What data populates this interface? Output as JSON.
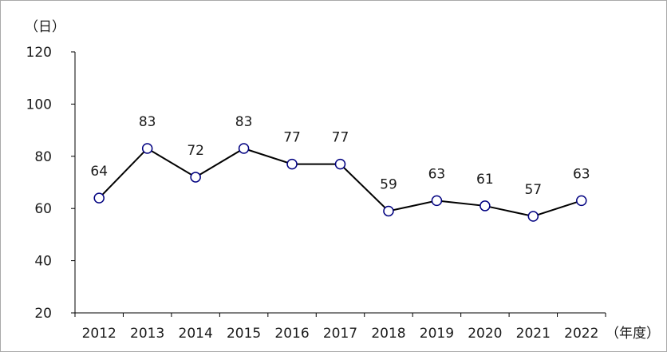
{
  "chart_data": {
    "type": "line",
    "y_unit": "（日）",
    "x_unit": "（年度）",
    "categories": [
      "2012",
      "2013",
      "2014",
      "2015",
      "2016",
      "2017",
      "2018",
      "2019",
      "2020",
      "2021",
      "2022"
    ],
    "series": [
      {
        "values": [
          64,
          83,
          72,
          83,
          77,
          77,
          59,
          63,
          61,
          57,
          63
        ],
        "color": "#000000",
        "marker_fill": "#ffffff",
        "marker_stroke": "#000080"
      }
    ],
    "ylim": [
      20,
      120
    ],
    "yticks": [
      20,
      40,
      60,
      80,
      100,
      120
    ],
    "grid": false,
    "legend": "none"
  }
}
